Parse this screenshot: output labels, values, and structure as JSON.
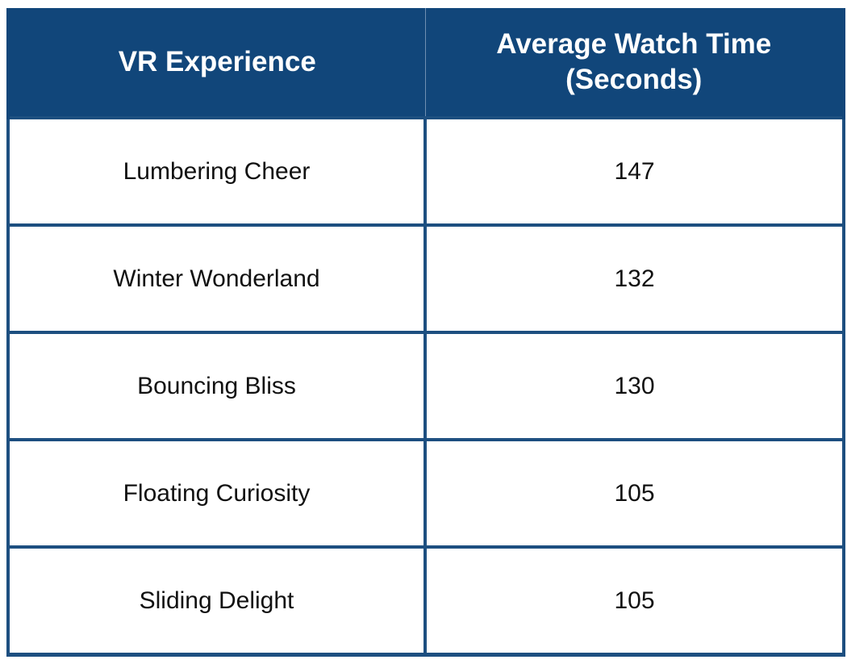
{
  "table": {
    "headers": {
      "experience": "VR Experience",
      "watch_time_line1": "Average Watch Time",
      "watch_time_line2": "(Seconds)"
    },
    "rows": [
      {
        "experience": "Lumbering Cheer",
        "watch_time": "147"
      },
      {
        "experience": "Winter Wonderland",
        "watch_time": "132"
      },
      {
        "experience": "Bouncing Bliss",
        "watch_time": "130"
      },
      {
        "experience": "Floating Curiosity",
        "watch_time": "105"
      },
      {
        "experience": "Sliding Delight",
        "watch_time": "105"
      }
    ]
  },
  "colors": {
    "header_bg": "#11467a",
    "border": "#1d4f80",
    "header_text": "#ffffff",
    "cell_text": "#111111"
  }
}
